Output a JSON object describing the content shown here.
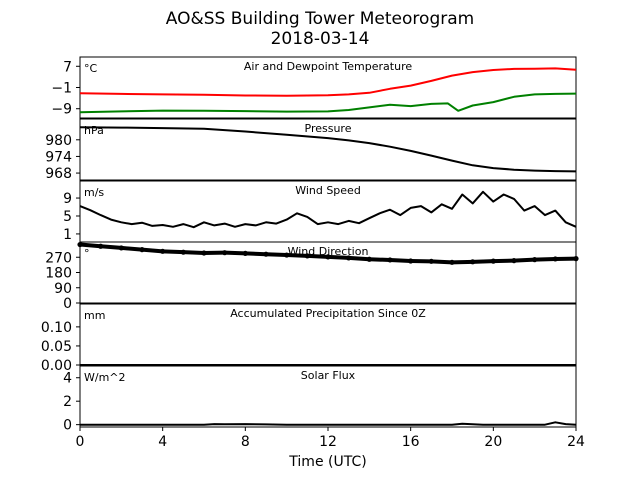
{
  "figure": {
    "title_line1": "AO&SS Building Tower Meteorogram",
    "title_line2": "2018-03-14",
    "xlabel": "Time (UTC)",
    "xticks": [
      0,
      4,
      8,
      12,
      16,
      20,
      24
    ]
  },
  "chart_data": [
    {
      "type": "line",
      "title": "Air and Dewpoint Temperature",
      "ylabel": "°C",
      "ylim": [
        -12.5,
        10.5
      ],
      "yticks": [
        7,
        -1,
        -9
      ],
      "ytick_labels": [
        "7",
        "−1",
        "−9"
      ],
      "series": [
        {
          "color": "#ff0000",
          "x": [
            0,
            2,
            4,
            6,
            8,
            10,
            12,
            13,
            14,
            15,
            16,
            17,
            18,
            19,
            20,
            21,
            22,
            23,
            24
          ],
          "y": [
            -3.2,
            -3.4,
            -3.6,
            -3.7,
            -4.0,
            -4.1,
            -3.9,
            -3.6,
            -3.0,
            -1.5,
            -0.3,
            1.5,
            3.5,
            4.8,
            5.6,
            6.0,
            6.1,
            6.2,
            5.7
          ]
        },
        {
          "color": "#008000",
          "x": [
            0,
            2,
            4,
            6,
            8,
            10,
            12,
            13,
            14,
            15,
            16,
            17,
            17.8,
            18.3,
            19,
            20,
            21,
            22,
            23,
            24
          ],
          "y": [
            -10.3,
            -10.0,
            -9.7,
            -9.8,
            -9.9,
            -10.1,
            -10.0,
            -9.5,
            -8.5,
            -7.5,
            -8.0,
            -7.2,
            -7.0,
            -9.8,
            -7.8,
            -6.5,
            -4.5,
            -3.6,
            -3.4,
            -3.3
          ]
        }
      ]
    },
    {
      "type": "line",
      "title": "Pressure",
      "ylabel": "hPa",
      "ylim": [
        965.5,
        987.5
      ],
      "yticks": [
        980,
        974,
        968
      ],
      "ytick_labels": [
        "980",
        "974",
        "968"
      ],
      "series": [
        {
          "color": "#000000",
          "x": [
            0,
            2,
            4,
            6,
            8,
            10,
            12,
            13,
            14,
            15,
            16,
            17,
            18,
            19,
            20,
            21,
            22,
            23,
            24
          ],
          "y": [
            984.5,
            984.4,
            984.2,
            984.0,
            983.0,
            981.8,
            980.6,
            979.8,
            978.8,
            977.5,
            976.0,
            974.3,
            972.5,
            970.8,
            969.8,
            969.2,
            968.9,
            968.7,
            968.6
          ]
        }
      ]
    },
    {
      "type": "line",
      "title": "Wind Speed",
      "ylabel": "m/s",
      "ylim": [
        -0.8,
        12.8
      ],
      "yticks": [
        9,
        5,
        1
      ],
      "ytick_labels": [
        "9",
        "5",
        "1"
      ],
      "series": [
        {
          "color": "#000000",
          "x": [
            0,
            0.5,
            1,
            1.5,
            2,
            2.5,
            3,
            3.5,
            4,
            4.5,
            5,
            5.5,
            6,
            6.5,
            7,
            7.5,
            8,
            8.5,
            9,
            9.5,
            10,
            10.5,
            11,
            11.5,
            12,
            12.5,
            13,
            13.5,
            14,
            14.5,
            15,
            15.5,
            16,
            16.5,
            17,
            17.5,
            18,
            18.5,
            19,
            19.5,
            20,
            20.5,
            21,
            21.5,
            22,
            22.5,
            23,
            23.5,
            24
          ],
          "y": [
            7.2,
            6.3,
            5.2,
            4.2,
            3.6,
            3.2,
            3.5,
            2.8,
            3.0,
            2.6,
            3.2,
            2.5,
            3.6,
            2.9,
            3.3,
            2.6,
            3.2,
            2.9,
            3.6,
            3.3,
            4.2,
            5.6,
            4.8,
            3.2,
            3.6,
            3.2,
            3.9,
            3.4,
            4.5,
            5.6,
            6.4,
            5.2,
            6.8,
            7.2,
            5.8,
            7.6,
            6.6,
            9.8,
            7.8,
            10.4,
            8.2,
            9.8,
            8.8,
            6.2,
            7.2,
            5.2,
            6.2,
            3.6,
            2.6
          ]
        }
      ]
    },
    {
      "type": "scatter",
      "title": "Wind Direction",
      "ylabel": "°",
      "ylim": [
        0,
        360
      ],
      "yticks": [
        270,
        180,
        90,
        0
      ],
      "ytick_labels": [
        "270",
        "180",
        "90",
        "0"
      ],
      "series": [
        {
          "color": "#000000",
          "x": [
            0,
            1,
            2,
            3,
            4,
            5,
            6,
            7,
            8,
            9,
            10,
            11,
            12,
            13,
            14,
            15,
            16,
            17,
            18,
            19,
            20,
            21,
            22,
            23,
            24
          ],
          "y": [
            345,
            335,
            325,
            315,
            305,
            300,
            295,
            297,
            293,
            288,
            283,
            278,
            272,
            266,
            258,
            254,
            248,
            246,
            240,
            243,
            247,
            250,
            256,
            260,
            262
          ]
        }
      ]
    },
    {
      "type": "line",
      "title": "Accumulated Precipitation Since 0Z",
      "ylabel": "mm",
      "ylim": [
        0,
        0.16
      ],
      "yticks": [
        0.1,
        0.05,
        0.0
      ],
      "ytick_labels": [
        "0.10",
        "0.05",
        "0.00"
      ],
      "series": [
        {
          "color": "#000000",
          "x": [
            0,
            24
          ],
          "y": [
            0,
            0
          ]
        }
      ]
    },
    {
      "type": "line",
      "title": "Solar Flux",
      "ylabel": "W/m^2",
      "ylim": [
        -0.2,
        5.0
      ],
      "yticks": [
        4,
        2,
        0
      ],
      "ytick_labels": [
        "4",
        "2",
        "0"
      ],
      "series": [
        {
          "color": "#000000",
          "x": [
            0,
            6,
            6.5,
            7,
            8,
            9,
            10,
            18,
            18.5,
            19,
            19.5,
            22.5,
            23,
            23.5,
            24
          ],
          "y": [
            0,
            0,
            0.05,
            0.03,
            0.05,
            0.02,
            0,
            0,
            0.08,
            0.03,
            0,
            0,
            0.2,
            0.05,
            0
          ]
        }
      ]
    }
  ]
}
